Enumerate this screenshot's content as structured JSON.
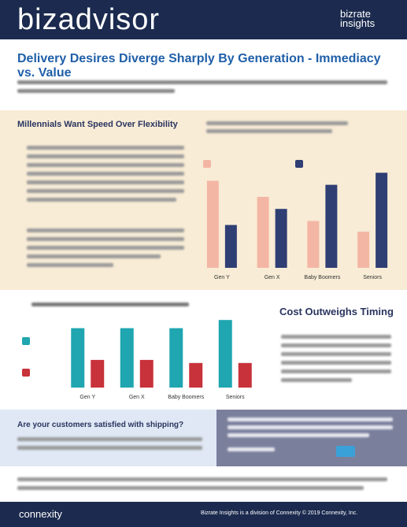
{
  "header": {
    "brand": "bizadvisor",
    "partner": "bizrate insights"
  },
  "title": "Delivery Desires Diverge Sharply By Generation - Immediacy vs. Value",
  "sections": {
    "speed": {
      "heading": "Millennials Want Speed Over Flexibility"
    },
    "cost": {
      "heading": "Cost Outweighs Timing"
    },
    "cta": {
      "heading": "Are your customers satisfied with shipping?"
    }
  },
  "charts": [
    {
      "type": "bar",
      "categories": [
        "Gen Y",
        "Gen X",
        "Baby Boomers",
        "Seniors"
      ],
      "series": [
        {
          "color": "#f4b6a4",
          "values": [
            65,
            53,
            35,
            27
          ]
        },
        {
          "color": "#2f3f74",
          "values": [
            32,
            44,
            62,
            71
          ]
        }
      ]
    },
    {
      "type": "bar",
      "categories": [
        "Gen Y",
        "Gen X",
        "Baby Boomers",
        "Seniors"
      ],
      "series": [
        {
          "color": "#1fa6b0",
          "values": [
            58,
            58,
            58,
            66
          ]
        },
        {
          "color": "#c8323a",
          "values": [
            27,
            27,
            24,
            24
          ]
        }
      ]
    }
  ],
  "footer": {
    "logo": "connexity",
    "note": "Bizrate Insights is a division of Connexity  © 2019 Connexity, Inc."
  }
}
